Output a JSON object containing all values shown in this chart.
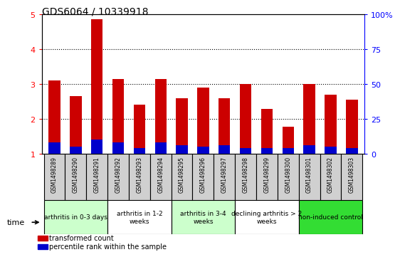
{
  "title": "GDS6064 / 10339918",
  "samples": [
    "GSM1498289",
    "GSM1498290",
    "GSM1498291",
    "GSM1498292",
    "GSM1498293",
    "GSM1498294",
    "GSM1498295",
    "GSM1498296",
    "GSM1498297",
    "GSM1498298",
    "GSM1498299",
    "GSM1498300",
    "GSM1498301",
    "GSM1498302",
    "GSM1498303"
  ],
  "red_values": [
    3.1,
    2.65,
    4.85,
    3.15,
    2.4,
    3.15,
    2.6,
    2.9,
    2.6,
    3.0,
    2.28,
    1.78,
    3.0,
    2.7,
    2.55
  ],
  "blue_values_pct": [
    8,
    5,
    10,
    8,
    4,
    8,
    6,
    5,
    6,
    4,
    4,
    4,
    6,
    5,
    4
  ],
  "ylim_left": [
    1,
    5
  ],
  "ylim_right": [
    0,
    100
  ],
  "yticks_left": [
    1,
    2,
    3,
    4,
    5
  ],
  "yticks_right": [
    0,
    25,
    50,
    75,
    100
  ],
  "yticklabels_right": [
    "0",
    "25",
    "50",
    "75",
    "100%"
  ],
  "groups": [
    {
      "label": "arthritis in 0-3 days",
      "start": 0,
      "end": 3,
      "color": "#ccffcc"
    },
    {
      "label": "arthritis in 1-2\nweeks",
      "start": 3,
      "end": 6,
      "color": "#ffffff"
    },
    {
      "label": "arthritis in 3-4\nweeks",
      "start": 6,
      "end": 9,
      "color": "#ccffcc"
    },
    {
      "label": "declining arthritis > 2\nweeks",
      "start": 9,
      "end": 12,
      "color": "#ffffff"
    },
    {
      "label": "non-induced control",
      "start": 12,
      "end": 15,
      "color": "#33dd33"
    }
  ],
  "bar_color_red": "#cc0000",
  "bar_color_blue": "#0000cc",
  "bar_width": 0.55,
  "legend_red": "transformed count",
  "legend_blue": "percentile rank within the sample"
}
